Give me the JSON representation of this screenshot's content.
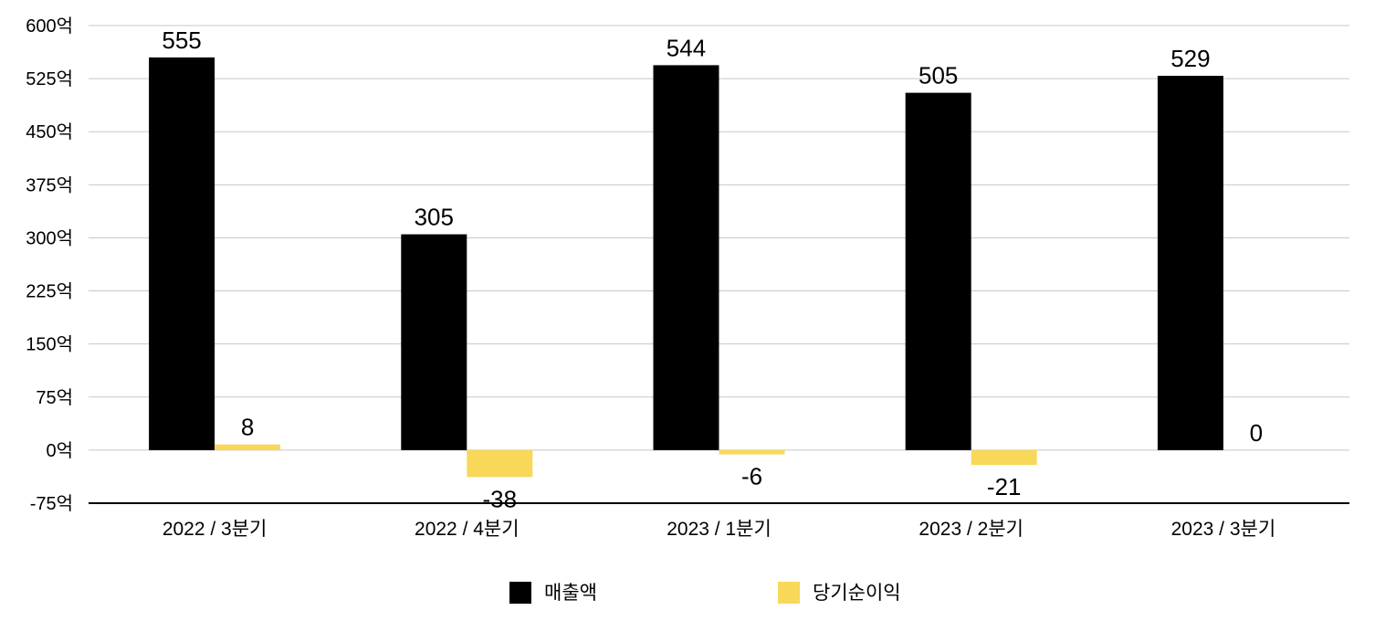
{
  "chart_data": {
    "type": "bar",
    "categories": [
      "2022 / 3분기",
      "2022 / 4분기",
      "2023 / 1분기",
      "2023 / 2분기",
      "2023 / 3분기"
    ],
    "series": [
      {
        "name": "매출액",
        "values": [
          555,
          305,
          544,
          505,
          529
        ],
        "labels": [
          "555",
          "305",
          "544",
          "505",
          "529"
        ],
        "color": "#000000"
      },
      {
        "name": "당기순이익",
        "values": [
          8,
          -38,
          -6,
          -21,
          0
        ],
        "labels": [
          "8",
          "-38",
          "-6",
          "-21",
          "0"
        ],
        "color": "#f7d85a"
      }
    ],
    "ylim": [
      -75,
      600
    ],
    "yticks": [
      600,
      525,
      450,
      375,
      300,
      225,
      150,
      75,
      0,
      -75
    ],
    "ytick_labels": [
      "600억",
      "525억",
      "450억",
      "375억",
      "300억",
      "225억",
      "150억",
      "75억",
      "0억",
      "-75억"
    ],
    "grid": true,
    "legend": "bottom-center"
  }
}
